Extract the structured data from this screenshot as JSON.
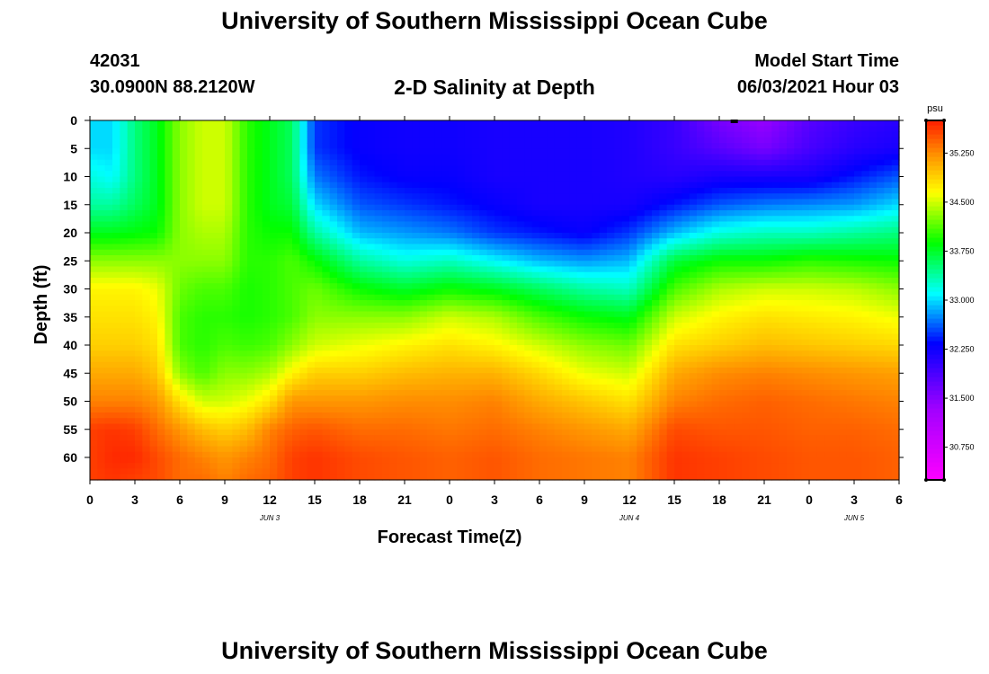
{
  "header": {
    "title": "University of Southern Mississippi Ocean Cube",
    "station_id": "42031",
    "station_coords": "30.0900N  88.2120W",
    "plot_title": "2-D Salinity at Depth",
    "model_start_label": "Model Start Time",
    "model_start_value": "06/03/2021 Hour 03"
  },
  "footer": {
    "title": "University of Southern Mississippi Ocean Cube"
  },
  "chart_data": {
    "type": "heatmap",
    "title": "2-D Salinity at Depth",
    "xlabel": "Forecast Time(Z)",
    "ylabel": "Depth (ft)",
    "x_hours_range": [
      0,
      54
    ],
    "x_ticks_hours": [
      0,
      3,
      6,
      9,
      12,
      15,
      18,
      21,
      24,
      27,
      30,
      33,
      36,
      39,
      42,
      45,
      48,
      51,
      54
    ],
    "x_tick_labels": [
      "0",
      "3",
      "6",
      "9",
      "12",
      "15",
      "18",
      "21",
      "0",
      "3",
      "6",
      "9",
      "12",
      "15",
      "18",
      "21",
      "0",
      "3",
      "6"
    ],
    "date_labels": [
      {
        "text": "JUN 3",
        "hour": 12
      },
      {
        "text": "JUN 4",
        "hour": 36
      },
      {
        "text": "JUN 5",
        "hour": 51
      }
    ],
    "y_range": [
      0,
      64
    ],
    "y_ticks": [
      0,
      5,
      10,
      15,
      20,
      25,
      30,
      35,
      40,
      45,
      50,
      55,
      60
    ],
    "colorbar": {
      "unit": "psu",
      "range": [
        30.25,
        35.75
      ],
      "ticks": [
        30.75,
        31.5,
        32.25,
        33.0,
        33.75,
        34.5,
        35.25
      ],
      "tick_labels": [
        "30.750",
        "31.500",
        "32.250",
        "33.000",
        "33.750",
        "34.500",
        "35.250"
      ]
    },
    "profile_hours": [
      0,
      1.5,
      3,
      4.5,
      6,
      7.5,
      9,
      10.5,
      12,
      13.5,
      15,
      18,
      21,
      24,
      27,
      30,
      33,
      36,
      39,
      42,
      45,
      48,
      51,
      54
    ],
    "profile_depths": [
      0,
      5,
      10,
      15,
      20,
      25,
      30,
      35,
      40,
      45,
      50,
      55,
      60,
      64
    ],
    "salinity_profiles": [
      [
        33.0,
        33.0,
        33.2,
        33.4,
        33.8,
        34.3,
        34.7,
        34.8,
        34.9,
        35.1,
        35.3,
        35.6,
        35.6,
        35.6
      ],
      [
        33.0,
        33.0,
        33.1,
        33.4,
        33.8,
        34.3,
        34.7,
        34.8,
        34.9,
        35.1,
        35.3,
        35.65,
        35.7,
        35.65
      ],
      [
        33.5,
        33.5,
        33.5,
        33.6,
        33.85,
        34.3,
        34.7,
        34.8,
        34.9,
        35.1,
        35.3,
        35.6,
        35.7,
        35.6
      ],
      [
        33.8,
        33.8,
        33.8,
        33.8,
        33.9,
        34.3,
        34.6,
        34.7,
        34.8,
        34.95,
        35.2,
        35.4,
        35.55,
        35.55
      ],
      [
        34.3,
        34.3,
        34.3,
        34.3,
        34.3,
        34.3,
        34.2,
        34.1,
        34.1,
        34.3,
        34.8,
        35.2,
        35.4,
        35.4
      ],
      [
        34.5,
        34.5,
        34.5,
        34.5,
        34.4,
        34.3,
        34.1,
        34.0,
        34.0,
        34.1,
        34.5,
        35.0,
        35.3,
        35.4
      ],
      [
        34.5,
        34.5,
        34.5,
        34.5,
        34.4,
        34.3,
        34.1,
        34.0,
        34.1,
        34.3,
        34.5,
        34.9,
        35.2,
        35.3
      ],
      [
        34.0,
        34.0,
        34.0,
        34.0,
        34.0,
        34.0,
        33.95,
        33.95,
        34.05,
        34.3,
        34.6,
        35.0,
        35.3,
        35.4
      ],
      [
        33.8,
        33.8,
        33.8,
        33.8,
        33.9,
        34.0,
        34.0,
        34.0,
        34.1,
        34.4,
        34.8,
        35.3,
        35.4,
        35.45
      ],
      [
        33.6,
        33.6,
        33.6,
        33.7,
        33.9,
        34.1,
        34.1,
        34.1,
        34.3,
        34.7,
        35.2,
        35.45,
        35.6,
        35.6
      ],
      [
        32.5,
        32.5,
        32.7,
        33.0,
        33.4,
        33.9,
        34.2,
        34.3,
        34.5,
        34.9,
        35.2,
        35.5,
        35.65,
        35.65
      ],
      [
        32.3,
        32.3,
        32.4,
        32.6,
        32.9,
        33.4,
        33.9,
        34.3,
        34.6,
        34.9,
        35.2,
        35.4,
        35.55,
        35.55
      ],
      [
        32.25,
        32.25,
        32.3,
        32.5,
        32.8,
        33.2,
        33.75,
        34.3,
        34.7,
        35.0,
        35.25,
        35.4,
        35.5,
        35.5
      ],
      [
        32.25,
        32.25,
        32.3,
        32.4,
        32.7,
        33.3,
        33.9,
        34.5,
        34.8,
        35.05,
        35.25,
        35.35,
        35.45,
        35.45
      ],
      [
        32.2,
        32.2,
        32.2,
        32.3,
        32.5,
        33.1,
        33.8,
        34.4,
        34.7,
        35.05,
        35.3,
        35.4,
        35.5,
        35.5
      ],
      [
        32.2,
        32.2,
        32.2,
        32.2,
        32.4,
        32.9,
        33.6,
        34.1,
        34.5,
        34.85,
        35.1,
        35.3,
        35.4,
        35.4
      ],
      [
        32.2,
        32.2,
        32.2,
        32.2,
        32.3,
        32.8,
        33.4,
        33.9,
        34.3,
        34.6,
        34.95,
        35.2,
        35.35,
        35.35
      ],
      [
        32.15,
        32.15,
        32.15,
        32.2,
        32.5,
        32.9,
        33.3,
        33.8,
        34.2,
        34.5,
        34.8,
        35.1,
        35.3,
        35.3
      ],
      [
        32.0,
        32.0,
        32.1,
        32.4,
        32.9,
        33.7,
        34.1,
        34.5,
        34.8,
        35.1,
        35.3,
        35.55,
        35.65,
        35.65
      ],
      [
        31.6,
        31.8,
        32.2,
        32.6,
        33.2,
        33.9,
        34.4,
        34.7,
        34.9,
        35.25,
        35.4,
        35.5,
        35.6,
        35.6
      ],
      [
        31.4,
        31.6,
        32.2,
        32.7,
        33.3,
        33.9,
        34.5,
        34.8,
        35.0,
        35.3,
        35.45,
        35.5,
        35.55,
        35.55
      ],
      [
        31.8,
        31.9,
        32.2,
        32.75,
        33.3,
        34.0,
        34.5,
        34.75,
        34.95,
        35.25,
        35.4,
        35.45,
        35.5,
        35.5
      ],
      [
        32.0,
        32.1,
        32.4,
        32.8,
        33.4,
        33.95,
        34.45,
        34.7,
        34.9,
        35.2,
        35.35,
        35.45,
        35.5,
        35.5
      ],
      [
        32.1,
        32.2,
        32.6,
        33.0,
        33.5,
        33.9,
        34.3,
        34.6,
        34.85,
        35.15,
        35.3,
        35.4,
        35.45,
        35.45
      ]
    ]
  }
}
